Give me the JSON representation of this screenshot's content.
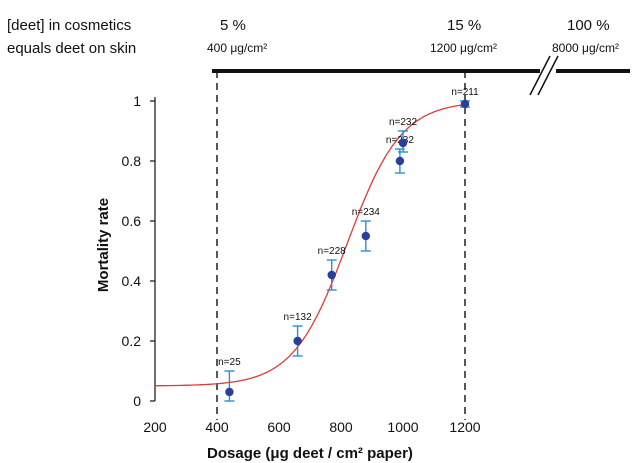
{
  "top_annotation": {
    "left_line1": "[deet] in cosmetics",
    "left_line2": "equals deet on skin",
    "markers": [
      {
        "pct": "5 %",
        "dose": "400 μg/cm²"
      },
      {
        "pct": "15 %",
        "dose": "1200 μg/cm²"
      },
      {
        "pct": "100 %",
        "dose": "8000 μg/cm²"
      }
    ]
  },
  "colors": {
    "points": "#2a3f9a",
    "errorbars": "#2b8fd6",
    "curve": "#e03a3a",
    "axis": "#111111"
  },
  "chart_data": {
    "type": "scatter",
    "xlabel": "Dosage (μg deet / cm² paper)",
    "ylabel": "Mortality rate",
    "xlim": [
      200,
      1200
    ],
    "ylim": [
      0,
      1
    ],
    "x_ticks": [
      200,
      400,
      600,
      800,
      1000,
      1200
    ],
    "y_ticks": [
      0,
      0.2,
      0.4,
      0.6,
      0.8,
      1
    ],
    "y_tick_labels": [
      "0",
      "0.2",
      "0.4",
      "0.6",
      "0.8",
      "1"
    ],
    "points": [
      {
        "x": 440,
        "y": 0.03,
        "err_low": 0.0,
        "err_high": 0.1,
        "n_label": "n=25"
      },
      {
        "x": 660,
        "y": 0.2,
        "err_low": 0.15,
        "err_high": 0.25,
        "n_label": "n=132"
      },
      {
        "x": 770,
        "y": 0.42,
        "err_low": 0.37,
        "err_high": 0.47,
        "n_label": "n=228"
      },
      {
        "x": 880,
        "y": 0.55,
        "err_low": 0.5,
        "err_high": 0.6,
        "n_label": "n=234"
      },
      {
        "x": 990,
        "y": 0.8,
        "err_low": 0.76,
        "err_high": 0.84,
        "n_label": "n=232"
      },
      {
        "x": 1000,
        "y": 0.86,
        "err_low": 0.83,
        "err_high": 0.9,
        "n_label": "n=232"
      },
      {
        "x": 1200,
        "y": 0.99,
        "err_low": 0.98,
        "err_high": 1.0,
        "n_label": "n=211"
      }
    ],
    "fitted_curve": {
      "type": "sigmoid",
      "baseline": 0.05,
      "top": 1.0,
      "midpoint": 820,
      "slope": 0.0115,
      "xrange": [
        200,
        1200
      ]
    },
    "reference_lines_x": [
      400,
      1200
    ],
    "grid": false,
    "legend": "none"
  }
}
